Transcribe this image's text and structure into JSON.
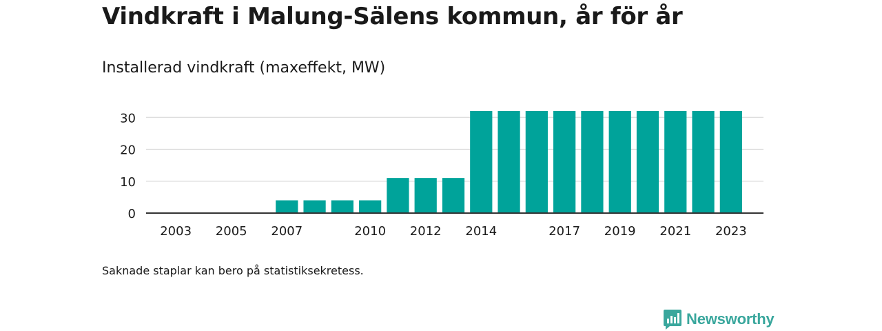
{
  "title": "Vindkraft i Malung-Sälens kommun, år för år",
  "subtitle": "Installerad vindkraft (maxeffekt, MW)",
  "footnote": "Saknade staplar kan bero på statistiksekretess.",
  "brand": {
    "name": "Newsworthy",
    "icon": "newsworthy-logo-icon",
    "color": "#3aa79d"
  },
  "colors": {
    "bar": "#00a39a",
    "grid": "#d9d9d9",
    "axis": "#333333"
  },
  "chart_data": {
    "type": "bar",
    "categories": [
      "2003",
      "2004",
      "2005",
      "2006",
      "2007",
      "2008",
      "2009",
      "2010",
      "2011",
      "2012",
      "2013",
      "2014",
      "2015",
      "2016",
      "2017",
      "2018",
      "2019",
      "2020",
      "2021",
      "2022",
      "2023"
    ],
    "values": [
      0,
      0,
      0,
      0,
      4,
      4,
      4,
      4,
      11,
      11,
      11,
      32,
      32,
      32,
      32,
      32,
      32,
      32,
      32,
      32,
      32
    ],
    "x_tick_labels": [
      "2003",
      "2005",
      "2007",
      "2010",
      "2012",
      "2014",
      "2017",
      "2019",
      "2021",
      "2023"
    ],
    "y_ticks": [
      0,
      10,
      20,
      30
    ],
    "ylim": [
      0,
      32
    ],
    "grid": true,
    "title": "Vindkraft i Malung-Sälens kommun, år för år",
    "xlabel": "",
    "ylabel": ""
  }
}
